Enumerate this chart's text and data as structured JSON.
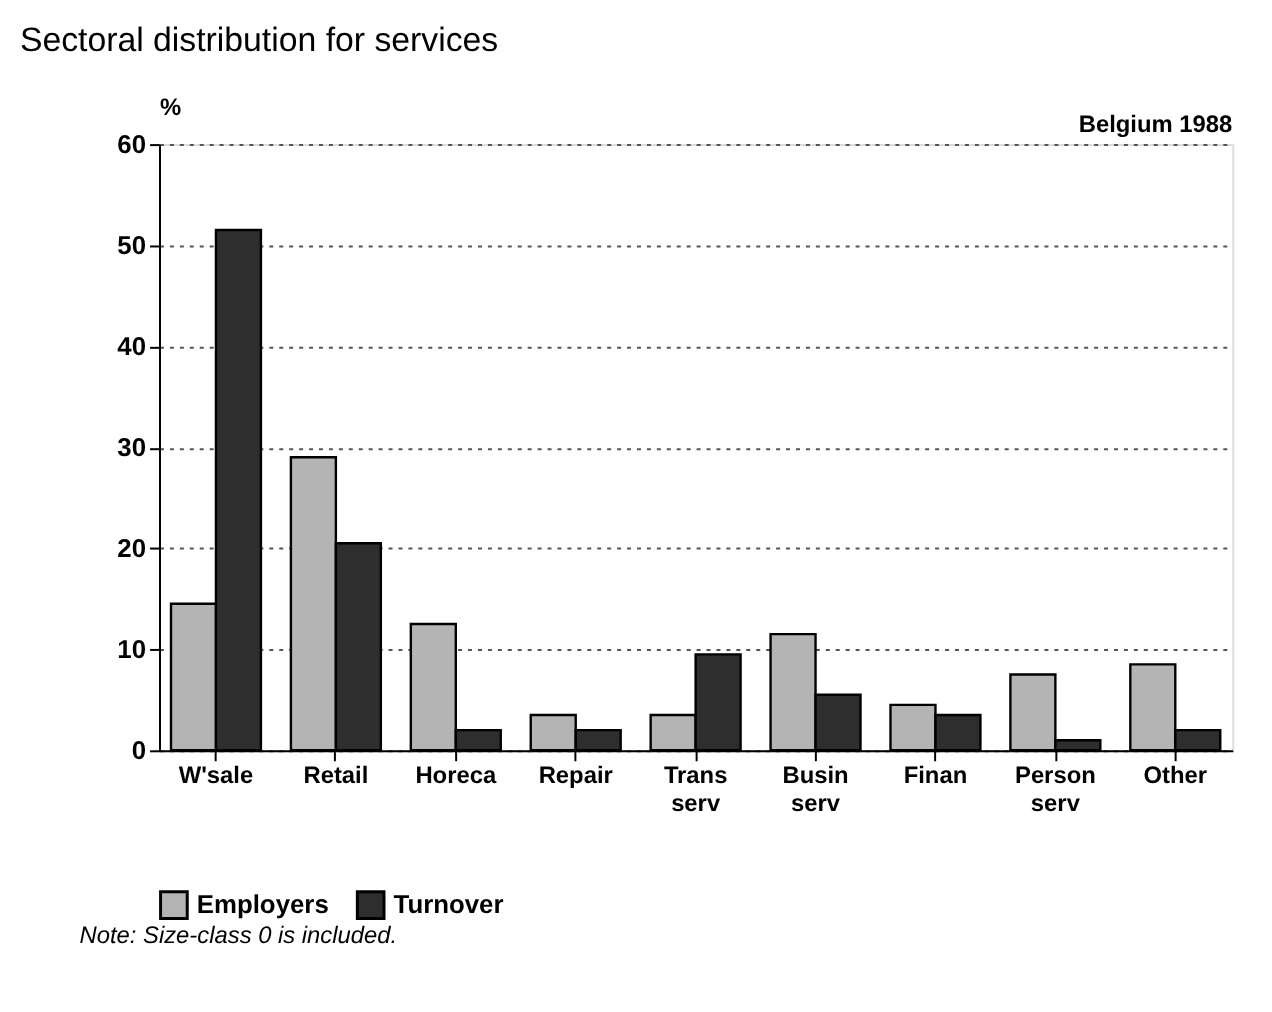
{
  "chart_data": {
    "type": "bar",
    "title": "Sectoral distribution for services",
    "ylabel": "%",
    "categories": [
      "W'sale",
      "Retail",
      "Horeca",
      "Repair",
      "Trans serv",
      "Busin serv",
      "Finan",
      "Person serv",
      "Other"
    ],
    "series": [
      {
        "name": "Employers",
        "color": "#b4b4b4",
        "values": [
          14.5,
          29,
          12.5,
          3.5,
          3.5,
          11.5,
          4.5,
          7.5,
          8.5
        ]
      },
      {
        "name": "Turnover",
        "color": "#2e2e2e",
        "values": [
          51.5,
          20.5,
          2,
          2,
          9.5,
          5.5,
          3.5,
          1,
          2
        ]
      }
    ],
    "ylim": [
      0,
      60
    ],
    "yticks": [
      0,
      10,
      20,
      30,
      40,
      50,
      60
    ],
    "grid": "y",
    "legend": "bottom",
    "annotations": [
      "Belgium 1988",
      "Note: Size-class 0 is included."
    ]
  }
}
